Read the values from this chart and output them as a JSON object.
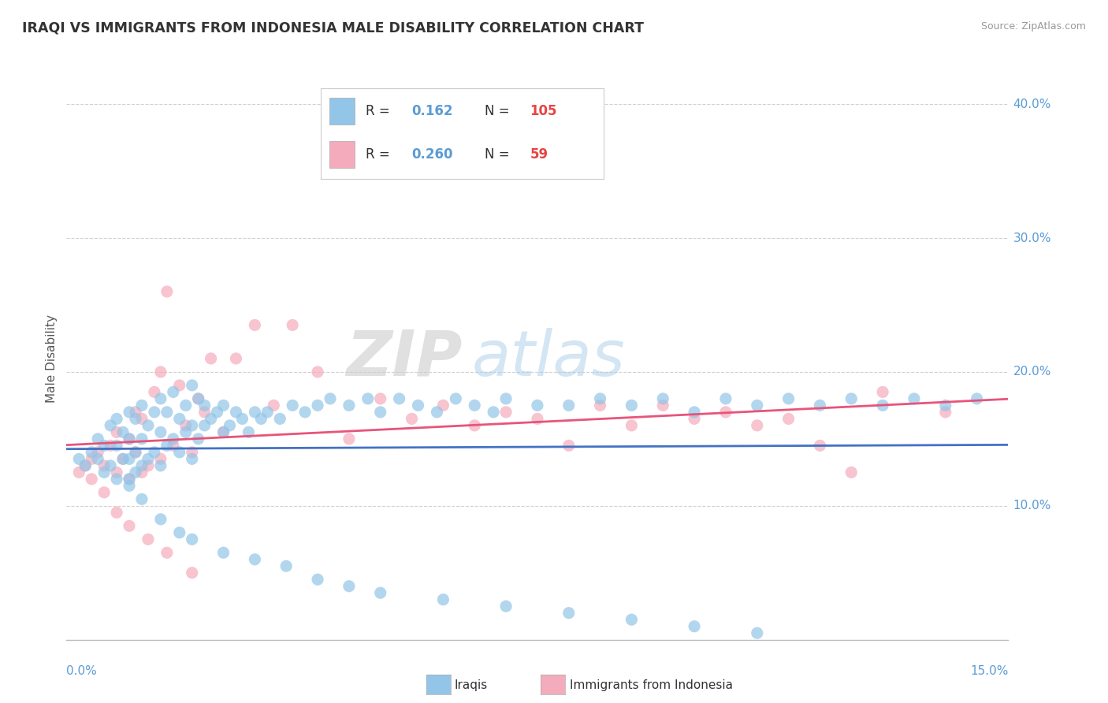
{
  "title": "IRAQI VS IMMIGRANTS FROM INDONESIA MALE DISABILITY CORRELATION CHART",
  "source": "Source: ZipAtlas.com",
  "ylabel": "Male Disability",
  "xmin": 0.0,
  "xmax": 15.0,
  "ymin": 0.0,
  "ymax": 42.0,
  "yticks": [
    10.0,
    20.0,
    30.0,
    40.0
  ],
  "ytick_labels": [
    "10.0%",
    "20.0%",
    "30.0%",
    "40.0%"
  ],
  "legend_iraqis_R": "0.162",
  "legend_iraqis_N": "105",
  "legend_indonesia_R": "0.260",
  "legend_indonesia_N": "59",
  "color_iraqi": "#92C5E8",
  "color_indonesia": "#F4ABBB",
  "color_iraqi_line": "#4472C4",
  "color_indonesia_line": "#E8547A",
  "watermark_zip": "ZIP",
  "watermark_atlas": "atlas",
  "background_color": "#FFFFFF",
  "grid_color": "#CCCCCC",
  "iraqis_x": [
    0.2,
    0.3,
    0.4,
    0.5,
    0.5,
    0.6,
    0.6,
    0.7,
    0.7,
    0.8,
    0.8,
    0.8,
    0.9,
    0.9,
    1.0,
    1.0,
    1.0,
    1.0,
    1.1,
    1.1,
    1.1,
    1.2,
    1.2,
    1.2,
    1.3,
    1.3,
    1.4,
    1.4,
    1.5,
    1.5,
    1.5,
    1.6,
    1.6,
    1.7,
    1.7,
    1.8,
    1.8,
    1.9,
    1.9,
    2.0,
    2.0,
    2.0,
    2.1,
    2.1,
    2.2,
    2.2,
    2.3,
    2.4,
    2.5,
    2.5,
    2.6,
    2.7,
    2.8,
    2.9,
    3.0,
    3.1,
    3.2,
    3.4,
    3.6,
    3.8,
    4.0,
    4.2,
    4.5,
    4.8,
    5.0,
    5.3,
    5.6,
    5.9,
    6.2,
    6.5,
    6.8,
    7.0,
    7.5,
    8.0,
    8.5,
    9.0,
    9.5,
    10.0,
    10.5,
    11.0,
    11.5,
    12.0,
    12.5,
    13.0,
    13.5,
    14.0,
    14.5,
    1.0,
    1.2,
    1.5,
    1.8,
    2.0,
    2.5,
    3.0,
    3.5,
    4.0,
    4.5,
    5.0,
    6.0,
    7.0,
    8.0,
    9.0,
    10.0,
    11.0
  ],
  "iraqis_y": [
    13.5,
    13.0,
    14.0,
    13.5,
    15.0,
    12.5,
    14.5,
    13.0,
    16.0,
    12.0,
    14.5,
    16.5,
    13.5,
    15.5,
    12.0,
    13.5,
    15.0,
    17.0,
    12.5,
    14.0,
    16.5,
    13.0,
    15.0,
    17.5,
    13.5,
    16.0,
    14.0,
    17.0,
    13.0,
    15.5,
    18.0,
    14.5,
    17.0,
    15.0,
    18.5,
    14.0,
    16.5,
    15.5,
    17.5,
    13.5,
    16.0,
    19.0,
    15.0,
    18.0,
    16.0,
    17.5,
    16.5,
    17.0,
    15.5,
    17.5,
    16.0,
    17.0,
    16.5,
    15.5,
    17.0,
    16.5,
    17.0,
    16.5,
    17.5,
    17.0,
    17.5,
    18.0,
    17.5,
    18.0,
    17.0,
    18.0,
    17.5,
    17.0,
    18.0,
    17.5,
    17.0,
    18.0,
    17.5,
    17.5,
    18.0,
    17.5,
    18.0,
    17.0,
    18.0,
    17.5,
    18.0,
    17.5,
    18.0,
    17.5,
    18.0,
    17.5,
    18.0,
    11.5,
    10.5,
    9.0,
    8.0,
    7.5,
    6.5,
    6.0,
    5.5,
    4.5,
    4.0,
    3.5,
    3.0,
    2.5,
    2.0,
    1.5,
    1.0,
    0.5
  ],
  "indonesia_x": [
    0.2,
    0.3,
    0.4,
    0.5,
    0.6,
    0.7,
    0.8,
    0.8,
    0.9,
    1.0,
    1.0,
    1.1,
    1.1,
    1.2,
    1.2,
    1.3,
    1.4,
    1.5,
    1.5,
    1.6,
    1.7,
    1.8,
    1.9,
    2.0,
    2.1,
    2.2,
    2.3,
    2.5,
    2.7,
    3.0,
    3.3,
    3.6,
    4.0,
    4.5,
    5.0,
    5.5,
    6.0,
    6.5,
    7.0,
    7.5,
    8.0,
    8.5,
    9.0,
    9.5,
    10.0,
    10.5,
    11.0,
    11.5,
    12.0,
    12.5,
    13.0,
    14.0,
    0.4,
    0.6,
    0.8,
    1.0,
    1.3,
    1.6,
    2.0
  ],
  "indonesia_y": [
    12.5,
    13.0,
    13.5,
    14.0,
    13.0,
    14.5,
    12.5,
    15.5,
    13.5,
    12.0,
    15.0,
    14.0,
    17.0,
    12.5,
    16.5,
    13.0,
    18.5,
    13.5,
    20.0,
    26.0,
    14.5,
    19.0,
    16.0,
    14.0,
    18.0,
    17.0,
    21.0,
    15.5,
    21.0,
    23.5,
    17.5,
    23.5,
    20.0,
    15.0,
    18.0,
    16.5,
    17.5,
    16.0,
    17.0,
    16.5,
    14.5,
    17.5,
    16.0,
    17.5,
    16.5,
    17.0,
    16.0,
    16.5,
    14.5,
    12.5,
    18.5,
    17.0,
    12.0,
    11.0,
    9.5,
    8.5,
    7.5,
    6.5,
    5.0
  ]
}
